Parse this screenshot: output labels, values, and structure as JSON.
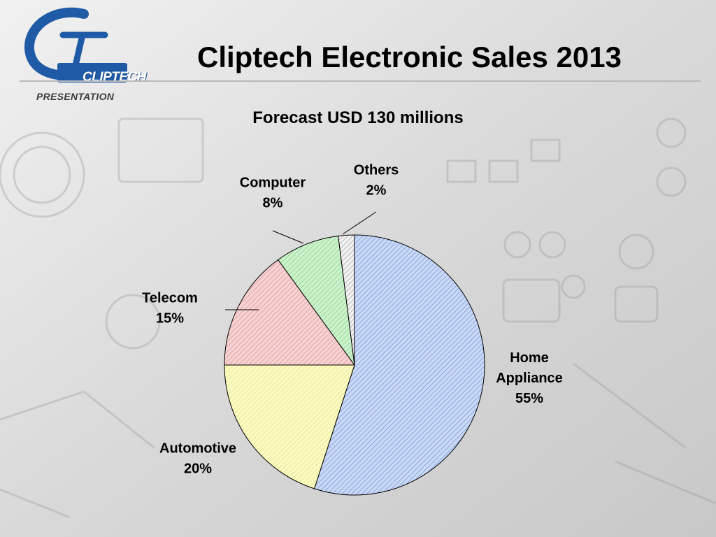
{
  "slide": {
    "title": "Cliptech Electronic Sales 2013",
    "subtitle": "Forecast USD 130 millions"
  },
  "logo": {
    "word": "CLIPTECH",
    "tagline": "PRESENTATION",
    "color": "#1f5aa6"
  },
  "chart_data": {
    "type": "pie",
    "title": "Forecast USD 130 millions",
    "start_angle_deg": 0,
    "direction": "clockwise",
    "slices": [
      {
        "label": "Home Appliance",
        "label_lines": [
          "Home",
          "Appliance",
          "55%"
        ],
        "value": 55,
        "color": "#c9d8f5",
        "hatch": "#6e8fd6"
      },
      {
        "label": "Automotive",
        "label_lines": [
          "Automotive",
          "20%"
        ],
        "value": 20,
        "color": "#fbfac2",
        "hatch": "#e5e07a"
      },
      {
        "label": "Telecom",
        "label_lines": [
          "Telecom",
          "15%"
        ],
        "value": 15,
        "color": "#f7d2d2",
        "hatch": "#d98c8c"
      },
      {
        "label": "Computer",
        "label_lines": [
          "Computer",
          "8%"
        ],
        "value": 8,
        "color": "#ccf2cc",
        "hatch": "#7fcf7f"
      },
      {
        "label": "Others",
        "label_lines": [
          "Others",
          "2%"
        ],
        "value": 2,
        "color": "#f2f2f2",
        "hatch": "#9a9a9a"
      }
    ]
  }
}
